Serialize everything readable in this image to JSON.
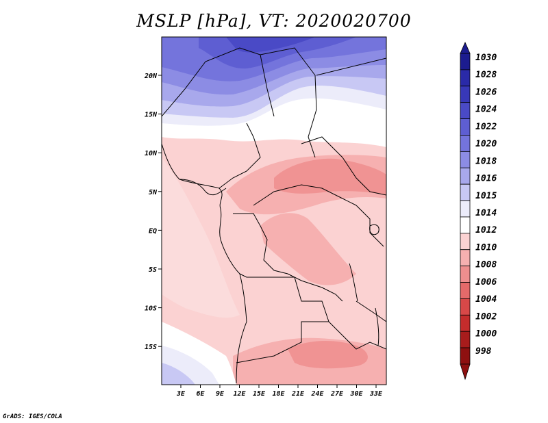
{
  "title": "MSLP [hPa], VT: 2020020700",
  "credit": "GrADS: IGES/COLA",
  "map": {
    "x_ticks": [
      "3E",
      "6E",
      "9E",
      "12E",
      "15E",
      "18E",
      "21E",
      "24E",
      "27E",
      "30E",
      "33E"
    ],
    "y_ticks": [
      "20N",
      "15N",
      "10N",
      "5N",
      "EQ",
      "5S",
      "10S",
      "15S"
    ]
  },
  "colorbar": {
    "levels": [
      "1030",
      "1028",
      "1026",
      "1024",
      "1022",
      "1020",
      "1018",
      "1016",
      "1015",
      "1014",
      "1012",
      "1010",
      "1008",
      "1006",
      "1004",
      "1002",
      "1000",
      "998"
    ],
    "colors": [
      "#1c1c8f",
      "#2a2aa8",
      "#3838b8",
      "#4a4ac6",
      "#5e5ed2",
      "#7474dc",
      "#8c8ce4",
      "#a8a8ec",
      "#c8c8f4",
      "#ececfa",
      "#ffffff",
      "#fbd2d2",
      "#f6b0b0",
      "#ee8e8e",
      "#e46a6a",
      "#d84848",
      "#c42c2c",
      "#a81c1c",
      "#8e1010"
    ]
  }
}
